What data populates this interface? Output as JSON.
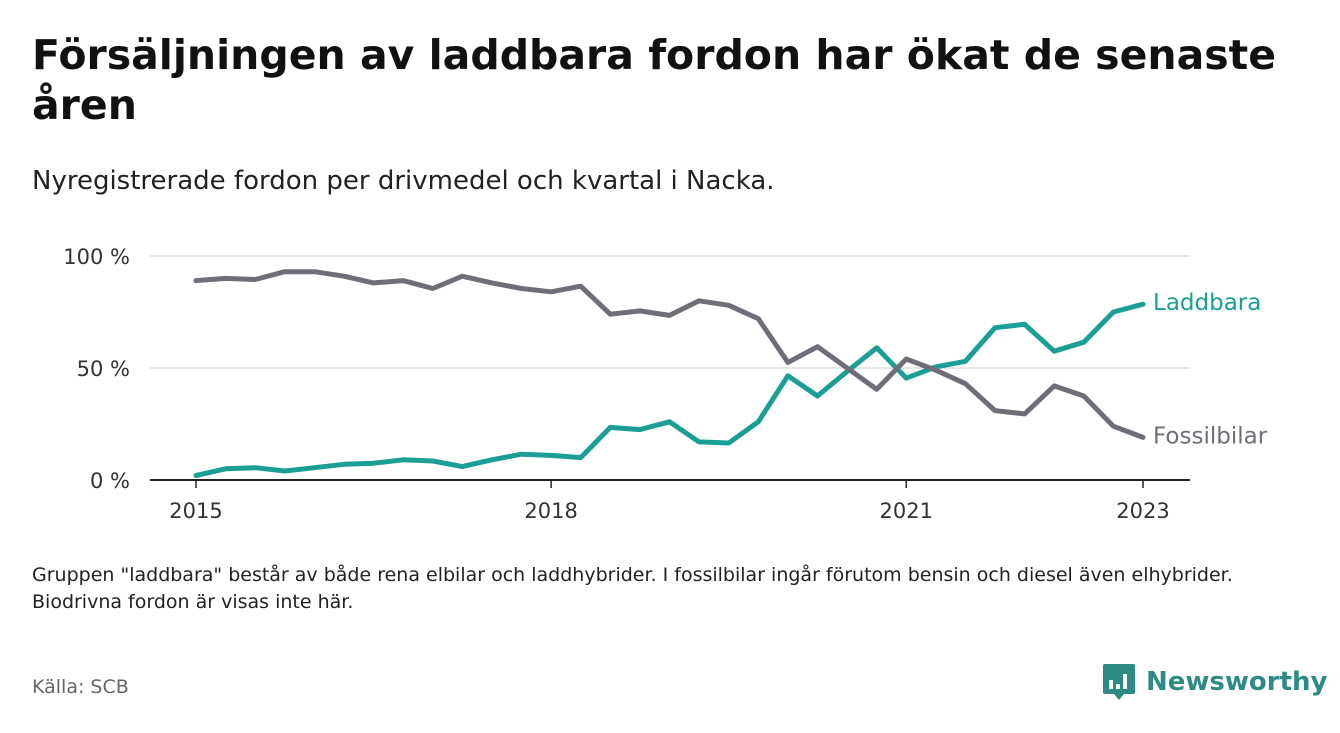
{
  "title": "Försäljningen av laddbara fordon har ökat de senaste åren",
  "subtitle": "Nyregistrerade fordon per drivmedel och kvartal i Nacka.",
  "note": "Gruppen \"laddbara\" består av både rena elbilar och laddhybrider. I fossilbilar ingår förutom bensin och diesel även elhybrider. Biodrivna fordon är visas inte här.",
  "source": "Källa: SCB",
  "brand": "Newsworthy",
  "colors": {
    "laddbara": "#1a9e96",
    "fossil": "#6f6e78",
    "grid": "#dddddd",
    "axis": "#222222",
    "brand": "#2e8b84"
  },
  "chart_data": {
    "type": "line",
    "title": "Försäljningen av laddbara fordon har ökat de senaste åren",
    "xlabel": "",
    "ylabel": "",
    "x_start": 2015,
    "quarters_per_year": 4,
    "xlim": [
      2015,
      2023.25
    ],
    "ylim": [
      0,
      100
    ],
    "y_ticks": [
      0,
      50,
      100
    ],
    "y_tick_labels": [
      "0 %",
      "50 %",
      "100 %"
    ],
    "x_ticks": [
      2015,
      2018,
      2021,
      2023
    ],
    "x_tick_labels": [
      "2015",
      "2018",
      "2021",
      "2023"
    ],
    "grid": true,
    "series": [
      {
        "name": "Laddbara",
        "label": "Laddbara",
        "color_key": "laddbara",
        "values": [
          2,
          5,
          5.5,
          4,
          5.5,
          7,
          7.5,
          9,
          8.5,
          6,
          9,
          11.5,
          11,
          10,
          23.5,
          22.5,
          26,
          17,
          16.5,
          26,
          46.5,
          37.5,
          48.5,
          59,
          45.5,
          50.5,
          53,
          68,
          69.5,
          57.5,
          61.5,
          75,
          78.5
        ]
      },
      {
        "name": "Fossilbilar",
        "label": "Fossilbilar",
        "color_key": "fossil",
        "values": [
          89,
          90,
          89.5,
          93,
          93,
          91,
          88,
          89,
          85.5,
          91,
          88,
          85.5,
          84,
          86.5,
          74,
          75.5,
          73.5,
          80,
          78,
          72,
          52.5,
          59.5,
          50,
          40.5,
          54,
          49,
          43,
          31,
          29.5,
          42,
          37.5,
          24,
          19
        ]
      }
    ]
  }
}
